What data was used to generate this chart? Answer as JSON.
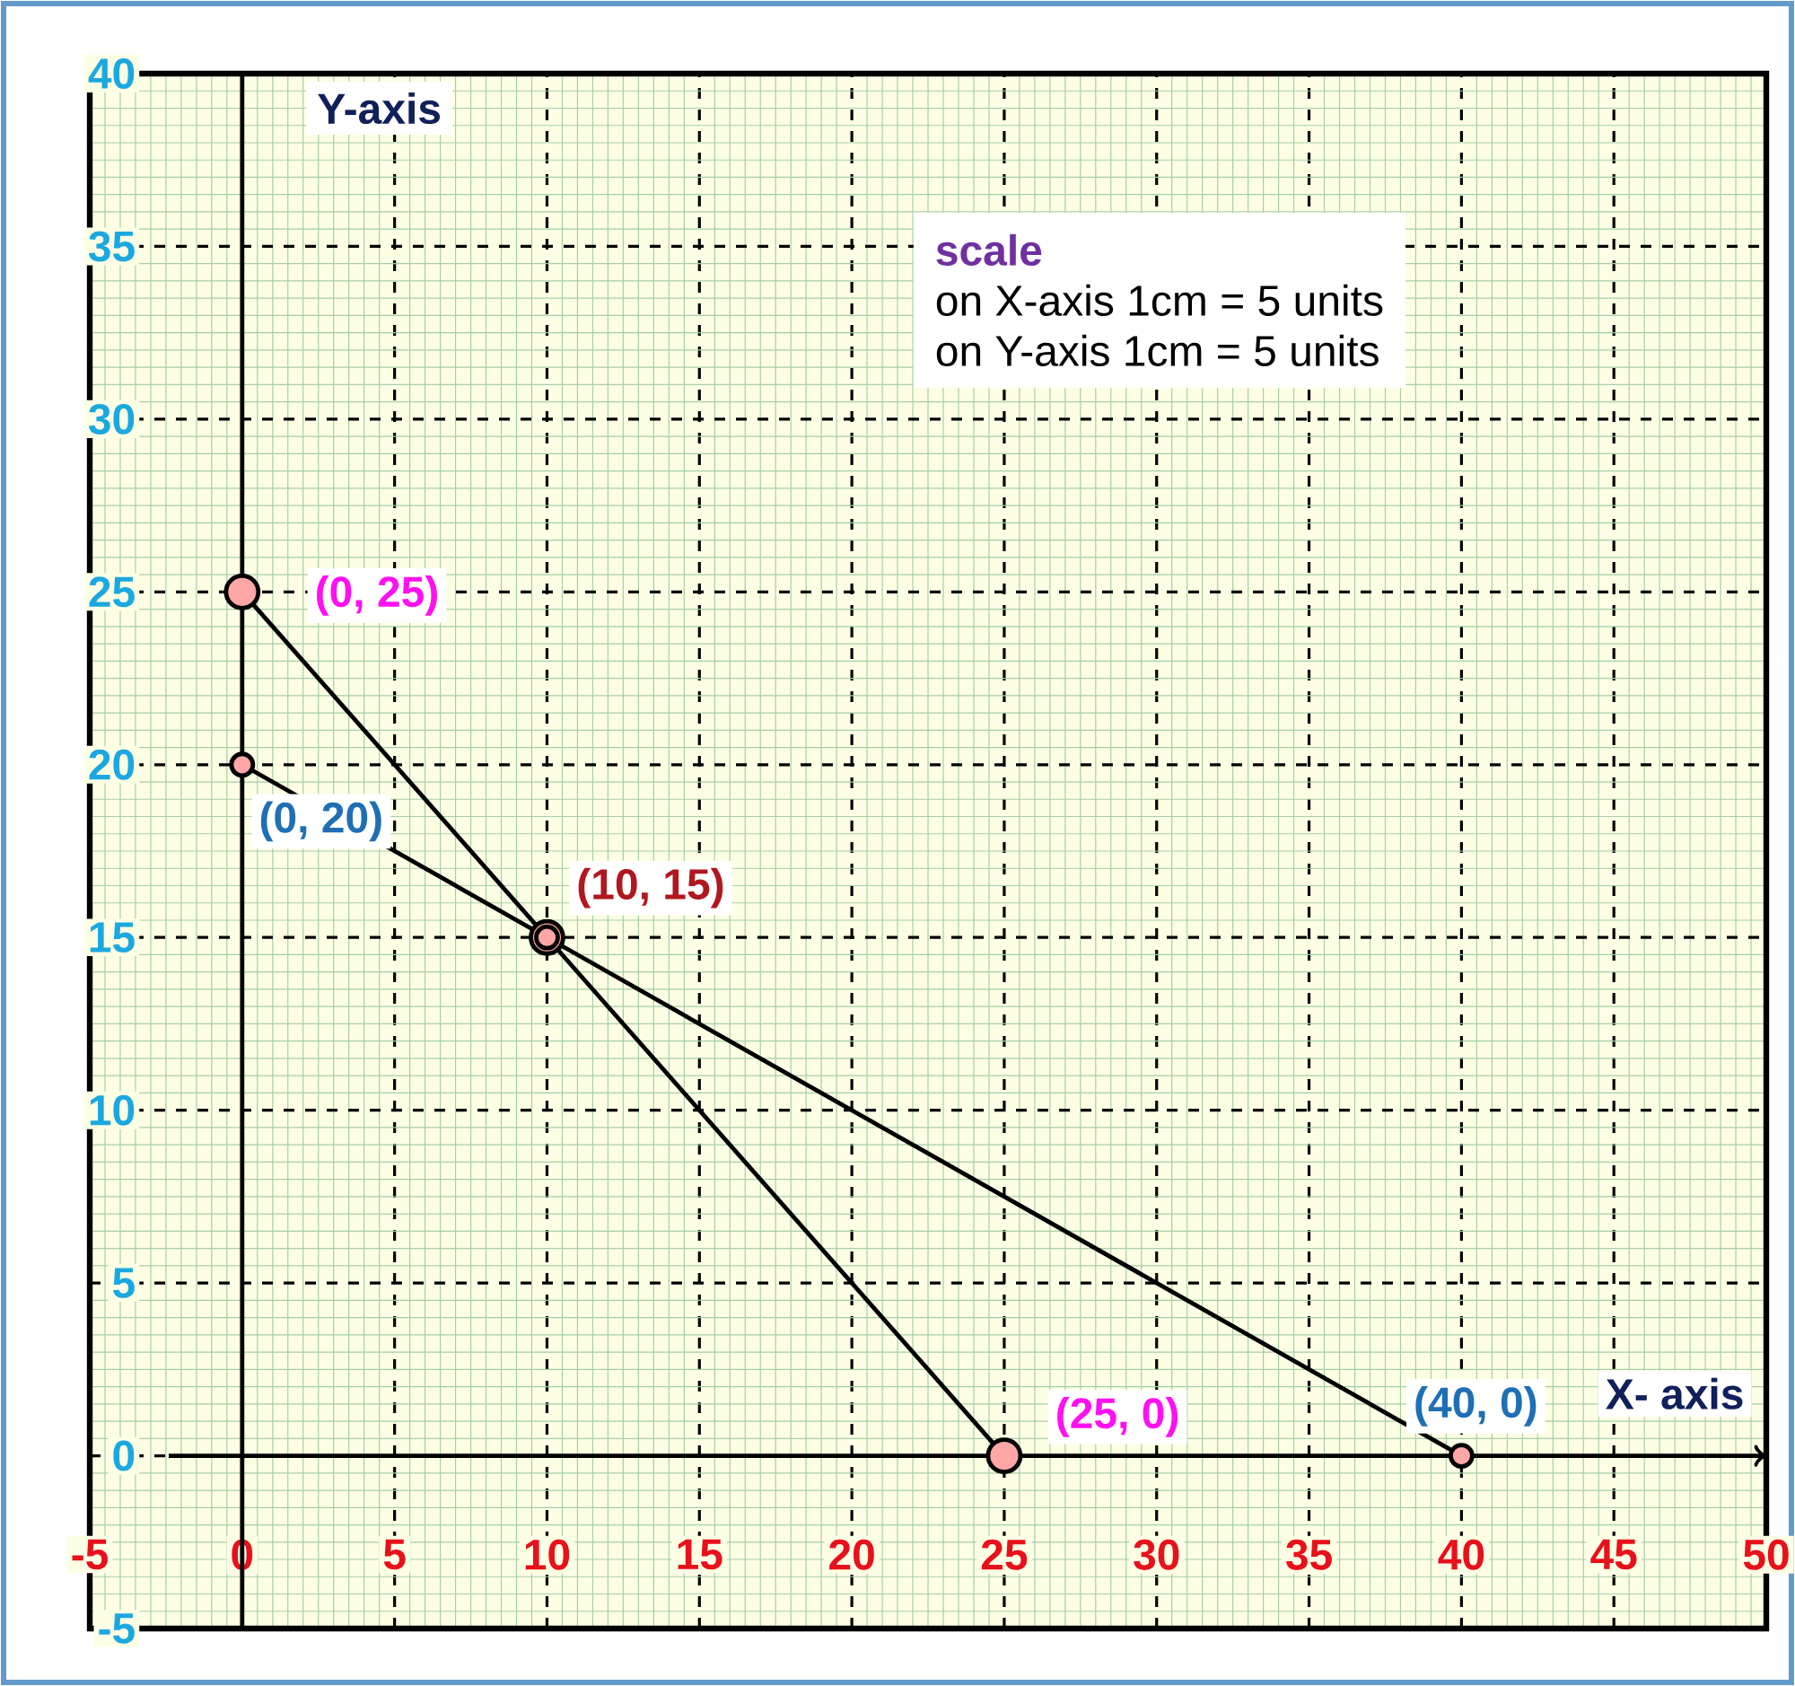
{
  "chart_data": {
    "type": "line",
    "xlabel": "X- axis",
    "ylabel": "Y-axis",
    "xlim": [
      -5,
      50
    ],
    "ylim": [
      -5,
      40
    ],
    "xticks": [
      -5,
      0,
      5,
      10,
      15,
      20,
      25,
      30,
      35,
      40,
      45,
      50
    ],
    "yticks": [
      -5,
      0,
      5,
      10,
      15,
      20,
      25,
      30,
      35,
      40
    ],
    "grid": true,
    "marker": "circle",
    "line_style": "solid",
    "series": [
      {
        "color": "#000000",
        "x": [
          0,
          10,
          25
        ],
        "values": [
          25,
          15,
          0
        ]
      },
      {
        "color": "#000000",
        "x": [
          0,
          10,
          40
        ],
        "values": [
          20,
          15,
          0
        ]
      }
    ],
    "annotations": [
      {
        "text": "(0, 25)",
        "x": 0,
        "y": 25
      },
      {
        "text": "(0, 20)",
        "x": 0,
        "y": 20
      },
      {
        "text": "(10, 15)",
        "x": 10,
        "y": 15
      },
      {
        "text": "(25, 0)",
        "x": 25,
        "y": 0
      },
      {
        "text": "(40, 0)",
        "x": 40,
        "y": 0
      },
      "scale",
      "on X-axis 1cm = 5 units",
      "on Y-axis 1cm = 5 units"
    ]
  }
}
